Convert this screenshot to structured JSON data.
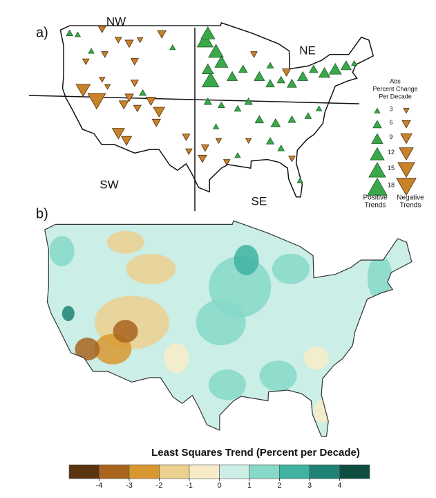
{
  "panel_a": {
    "label": "a)",
    "regions": [
      "NW",
      "NE",
      "SW",
      "SE"
    ],
    "positive_color": "#3aa84a",
    "negative_color": "#c8822a",
    "legend": {
      "title_lines": [
        "Abs",
        "Percent Change",
        "Per Decade"
      ],
      "sizes": [
        3,
        6,
        9,
        12,
        15,
        18
      ],
      "positive_label": [
        "Positive",
        "Trends"
      ],
      "negative_label": [
        "Negative",
        "Trends"
      ]
    },
    "stations": [
      {
        "lon": -123,
        "lat": 48,
        "trend": 4
      },
      {
        "lon": -121.5,
        "lat": 47.8,
        "trend": 3
      },
      {
        "lon": -117,
        "lat": 48.5,
        "trend": -5
      },
      {
        "lon": -114,
        "lat": 47,
        "trend": -4
      },
      {
        "lon": -112,
        "lat": 46.5,
        "trend": -6
      },
      {
        "lon": -110,
        "lat": 47,
        "trend": -3
      },
      {
        "lon": -116.5,
        "lat": 45,
        "trend": -4
      },
      {
        "lon": -120,
        "lat": 44,
        "trend": -4
      },
      {
        "lon": -119,
        "lat": 45.5,
        "trend": 3
      },
      {
        "lon": -111,
        "lat": 44,
        "trend": -5
      },
      {
        "lon": -106,
        "lat": 47.8,
        "trend": -6
      },
      {
        "lon": -104,
        "lat": 46,
        "trend": 3
      },
      {
        "lon": -120.5,
        "lat": 40,
        "trend": -12
      },
      {
        "lon": -118,
        "lat": 38.5,
        "trend": -16
      },
      {
        "lon": -113,
        "lat": 38,
        "trend": -7
      },
      {
        "lon": -112,
        "lat": 39,
        "trend": -6
      },
      {
        "lon": -110.5,
        "lat": 37.5,
        "trend": -5
      },
      {
        "lon": -108,
        "lat": 38.5,
        "trend": -7
      },
      {
        "lon": -106.5,
        "lat": 37,
        "trend": -9
      },
      {
        "lon": -107,
        "lat": 35.5,
        "trend": -6
      },
      {
        "lon": -109.5,
        "lat": 39.7,
        "trend": 4
      },
      {
        "lon": -111,
        "lat": 41,
        "trend": -5
      },
      {
        "lon": -117,
        "lat": 41.5,
        "trend": -3
      },
      {
        "lon": -114,
        "lat": 34,
        "trend": -10
      },
      {
        "lon": -112.5,
        "lat": 33,
        "trend": -8
      },
      {
        "lon": -101.5,
        "lat": 33.5,
        "trend": -5
      },
      {
        "lon": -101,
        "lat": 31.5,
        "trend": -4
      },
      {
        "lon": -116,
        "lat": 40.5,
        "trend": -3
      },
      {
        "lon": -98,
        "lat": 47,
        "trend": 14
      },
      {
        "lon": -97.5,
        "lat": 48,
        "trend": 12
      },
      {
        "lon": -96,
        "lat": 45.5,
        "trend": 13
      },
      {
        "lon": -95,
        "lat": 44,
        "trend": 11
      },
      {
        "lon": -97,
        "lat": 41.5,
        "trend": 15
      },
      {
        "lon": -97.5,
        "lat": 43,
        "trend": 9
      },
      {
        "lon": -93,
        "lat": 42,
        "trend": 8
      },
      {
        "lon": -91,
        "lat": 43,
        "trend": 6
      },
      {
        "lon": -88,
        "lat": 42,
        "trend": 8
      },
      {
        "lon": -86,
        "lat": 41,
        "trend": 6
      },
      {
        "lon": -84,
        "lat": 41.5,
        "trend": 5
      },
      {
        "lon": -82,
        "lat": 41,
        "trend": 7
      },
      {
        "lon": -80,
        "lat": 42,
        "trend": 8
      },
      {
        "lon": -76,
        "lat": 42.5,
        "trend": 9
      },
      {
        "lon": -74,
        "lat": 43,
        "trend": 10
      },
      {
        "lon": -72,
        "lat": 43.5,
        "trend": 8
      },
      {
        "lon": -70.5,
        "lat": 43.8,
        "trend": 3
      },
      {
        "lon": -78,
        "lat": 43,
        "trend": 6
      },
      {
        "lon": -89,
        "lat": 45,
        "trend": -4
      },
      {
        "lon": -86,
        "lat": 43.5,
        "trend": 4
      },
      {
        "lon": -83,
        "lat": 42.5,
        "trend": -6
      },
      {
        "lon": -97.5,
        "lat": 38.5,
        "trend": 5
      },
      {
        "lon": -95,
        "lat": 38,
        "trend": 4
      },
      {
        "lon": -92,
        "lat": 37.5,
        "trend": 4
      },
      {
        "lon": -90,
        "lat": 38.5,
        "trend": 5
      },
      {
        "lon": -88,
        "lat": 36,
        "trend": 6
      },
      {
        "lon": -85,
        "lat": 35.5,
        "trend": 7
      },
      {
        "lon": -82,
        "lat": 36,
        "trend": 5
      },
      {
        "lon": -79,
        "lat": 36.5,
        "trend": 4
      },
      {
        "lon": -77,
        "lat": 37.5,
        "trend": 3
      },
      {
        "lon": -86,
        "lat": 33,
        "trend": 5
      },
      {
        "lon": -84,
        "lat": 32,
        "trend": 4
      },
      {
        "lon": -90,
        "lat": 33,
        "trend": -3
      },
      {
        "lon": -92,
        "lat": 31,
        "trend": 3
      },
      {
        "lon": -96,
        "lat": 35,
        "trend": 3
      },
      {
        "lon": -98,
        "lat": 32,
        "trend": -5
      },
      {
        "lon": -98.5,
        "lat": 30.5,
        "trend": -6
      },
      {
        "lon": -82,
        "lat": 30.5,
        "trend": -4
      },
      {
        "lon": -80.5,
        "lat": 27.5,
        "trend": 3
      },
      {
        "lon": -94,
        "lat": 30,
        "trend": -4
      },
      {
        "lon": -95.5,
        "lat": 33,
        "trend": -3
      }
    ]
  },
  "panel_b": {
    "label": "b)",
    "colorbar": {
      "title": "Least Squares Trend (Percent per Decade)",
      "lim": [
        -5,
        5
      ],
      "ticks": [
        -4,
        -3,
        -2,
        -1,
        0,
        1,
        2,
        3,
        4
      ],
      "colors": [
        "#5a3310",
        "#a8641e",
        "#d9982f",
        "#ecd08f",
        "#f8ecc8",
        "#cbeee7",
        "#86d8c8",
        "#3fb3a0",
        "#1e8375",
        "#0e4d40"
      ]
    }
  }
}
